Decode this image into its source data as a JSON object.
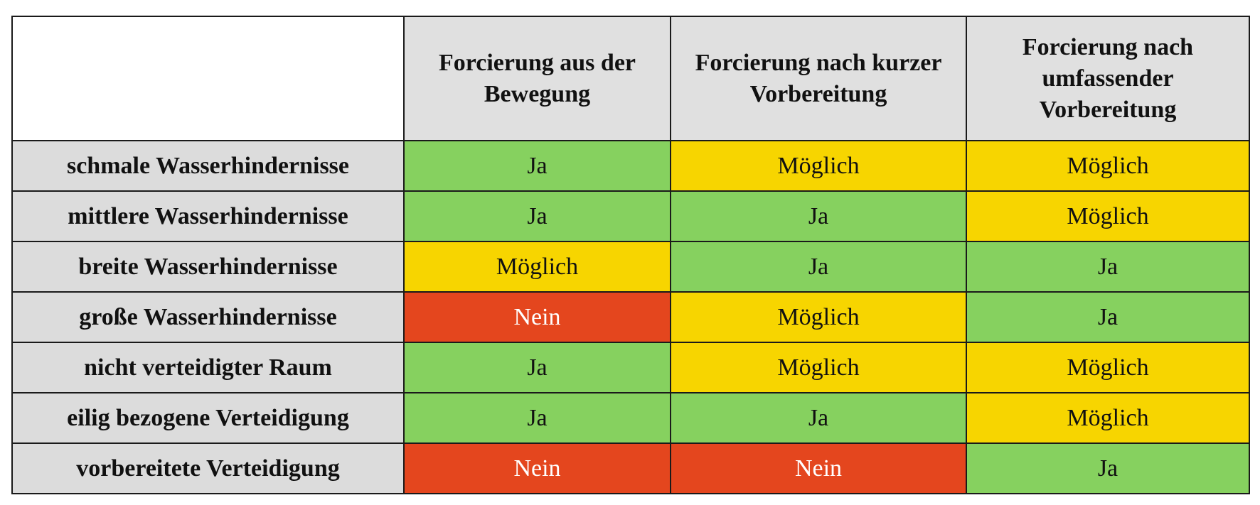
{
  "table": {
    "columns": [
      "",
      "Forcierung aus der Bewegung",
      "Forcierung nach kurzer Vorbereitung",
      "Forcierung nach umfassender Vorbereitung"
    ],
    "rows": [
      {
        "label": "schmale Wasserhindernisse",
        "cells": [
          "Ja",
          "Möglich",
          "Möglich"
        ]
      },
      {
        "label": "mittlere Wasserhindernisse",
        "cells": [
          "Ja",
          "Ja",
          "Möglich"
        ]
      },
      {
        "label": "breite Wasserhindernisse",
        "cells": [
          "Möglich",
          "Ja",
          "Ja"
        ]
      },
      {
        "label": "große Wasserhindernisse",
        "cells": [
          "Nein",
          "Möglich",
          "Ja"
        ]
      },
      {
        "label": "nicht verteidigter Raum",
        "cells": [
          "Ja",
          "Möglich",
          "Möglich"
        ]
      },
      {
        "label": "eilig bezogene Verteidigung",
        "cells": [
          "Ja",
          "Ja",
          "Möglich"
        ]
      },
      {
        "label": "vorbereitete Verteidigung",
        "cells": [
          "Nein",
          "Nein",
          "Ja"
        ]
      }
    ]
  },
  "colors": {
    "Ja": "#86d15f",
    "Möglich": "#f7d500",
    "Nein": "#e4461e",
    "header": "#e0e0e0",
    "row_header": "#dcdcdc"
  }
}
